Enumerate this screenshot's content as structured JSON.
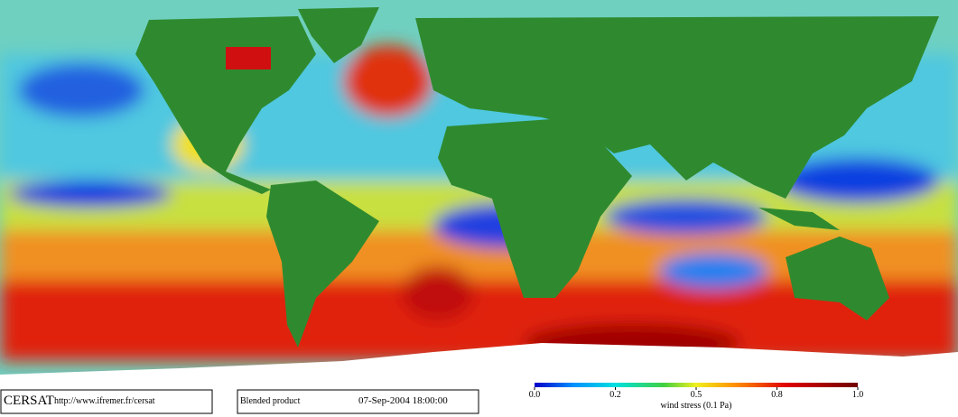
{
  "footer": {
    "logo": "CERSAT",
    "url": "http://www.ifremer.fr/cersat",
    "product": "Blended product",
    "datetime": "07-Sep-2004 18:00:00"
  },
  "colorbar": {
    "ticks": [
      {
        "value": 0,
        "label": "0.0"
      },
      0.2,
      0.5,
      0.8,
      {
        "value": 1,
        "label": "1.0"
      }
    ],
    "label": "wind stress (0.1 Pa)"
  }
}
